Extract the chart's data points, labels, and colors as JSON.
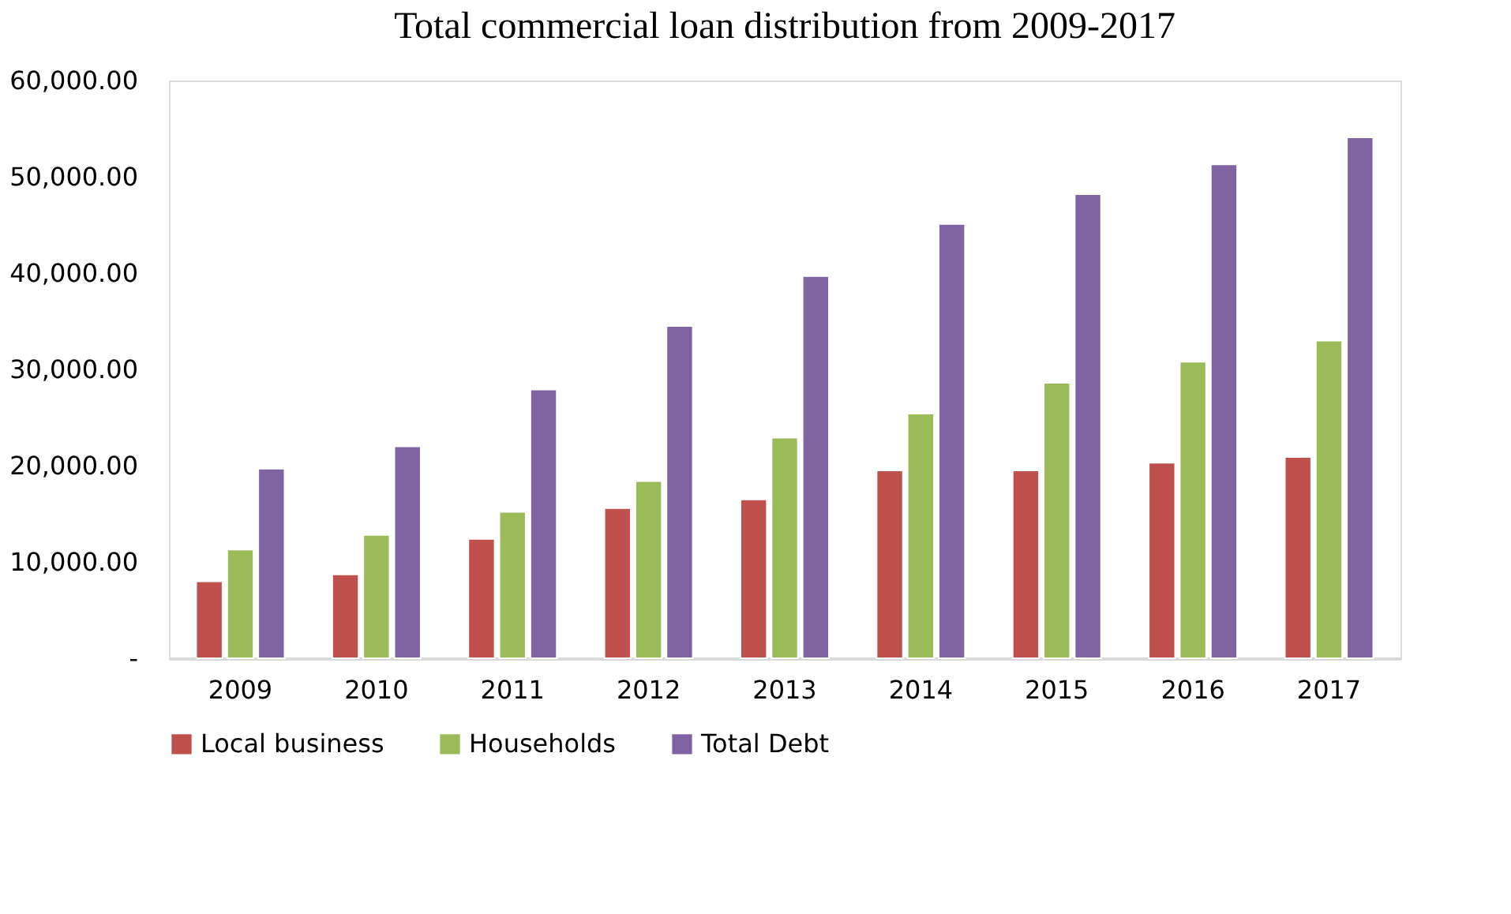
{
  "chart_data": {
    "type": "bar",
    "title": "Total commercial loan distribution from 2009-2017",
    "categories": [
      "2009",
      "2010",
      "2011",
      "2012",
      "2013",
      "2014",
      "2015",
      "2016",
      "2017"
    ],
    "series": [
      {
        "name": "Local business",
        "color": "#c0504d",
        "values": [
          8000,
          8700,
          12400,
          15600,
          16500,
          19500,
          19500,
          20300,
          20900
        ]
      },
      {
        "name": "Households",
        "color": "#9bbb59",
        "values": [
          11300,
          12800,
          15200,
          18400,
          22900,
          25400,
          28600,
          30800,
          33000
        ]
      },
      {
        "name": "Total Debt",
        "color": "#8064a2",
        "values": [
          19700,
          22000,
          27900,
          34500,
          39700,
          45100,
          48200,
          51300,
          54100
        ]
      }
    ],
    "ylim": [
      0,
      60000
    ],
    "yticks": [
      {
        "value": 0,
        "label": "-"
      },
      {
        "value": 10000,
        "label": "10,000.00"
      },
      {
        "value": 20000,
        "label": "20,000.00"
      },
      {
        "value": 30000,
        "label": "30,000.00"
      },
      {
        "value": 40000,
        "label": "40,000.00"
      },
      {
        "value": 50000,
        "label": "50,000.00"
      },
      {
        "value": 60000,
        "label": "60,000.00"
      }
    ],
    "grid": false,
    "legend": "bottom"
  }
}
